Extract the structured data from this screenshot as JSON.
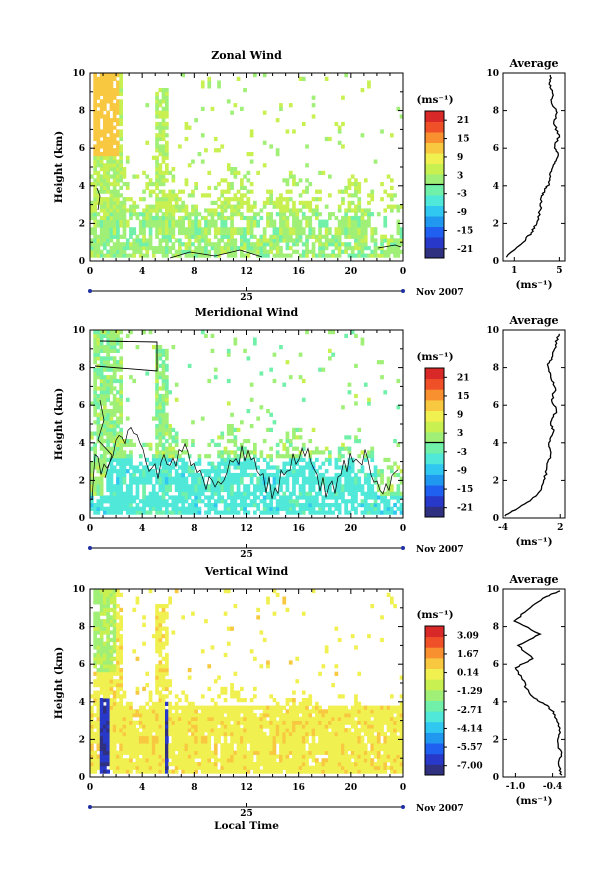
{
  "x_label": "Local Time",
  "date_label": "Nov 2007",
  "day_label": "25",
  "colorbar_unit": "(ms⁻¹)",
  "colormap": [
    "#303080",
    "#2838c8",
    "#2060f0",
    "#2098f0",
    "#30c8f0",
    "#50e8d8",
    "#70f0a8",
    "#a0f078",
    "#c8f050",
    "#f0f050",
    "#f8c840",
    "#f89030",
    "#f05028",
    "#d82828"
  ],
  "chart_data": [
    {
      "type": "heatmap",
      "title": "Zonal Wind",
      "xlabel": "",
      "ylabel": "Height (km)",
      "xlim": [
        0,
        24
      ],
      "ylim": [
        0,
        10
      ],
      "x_ticks": [
        "0",
        "4",
        "8",
        "12",
        "16",
        "20",
        "0"
      ],
      "y_ticks": [
        "0",
        "2",
        "4",
        "6",
        "8",
        "10"
      ],
      "colorbar": {
        "min": -24,
        "max": 24,
        "ticks": [
          "21",
          "15",
          "9",
          "3",
          "-3",
          "-9",
          "-15",
          "-21"
        ],
        "zero_line": 0
      },
      "profile": {
        "title": "Average",
        "xlabel": "(ms⁻¹)",
        "xlim": [
          0,
          5.5
        ],
        "x_ticks": [
          "1",
          "5"
        ],
        "x_tick_values": [
          1,
          5
        ],
        "points": [
          [
            0.3,
            0.2
          ],
          [
            1.8,
            1.0
          ],
          [
            2.5,
            1.5
          ],
          [
            3.0,
            2.0
          ],
          [
            3.3,
            2.7
          ],
          [
            3.4,
            3.4
          ],
          [
            3.7,
            3.8
          ],
          [
            4.1,
            4.1
          ],
          [
            4.2,
            4.7
          ],
          [
            4.6,
            5.2
          ],
          [
            4.9,
            5.6
          ],
          [
            4.6,
            6.1
          ],
          [
            5.0,
            6.7
          ],
          [
            4.5,
            7.3
          ],
          [
            4.8,
            7.9
          ],
          [
            4.3,
            8.4
          ],
          [
            4.4,
            8.9
          ],
          [
            4.1,
            9.4
          ],
          [
            4.2,
            9.9
          ]
        ]
      }
    },
    {
      "type": "heatmap",
      "title": "Meridional Wind",
      "xlabel": "",
      "ylabel": "Height (km)",
      "xlim": [
        0,
        24
      ],
      "ylim": [
        0,
        10
      ],
      "x_ticks": [
        "0",
        "4",
        "8",
        "12",
        "16",
        "20",
        "0"
      ],
      "y_ticks": [
        "0",
        "2",
        "4",
        "6",
        "8",
        "10"
      ],
      "colorbar": {
        "min": -24,
        "max": 24,
        "ticks": [
          "21",
          "15",
          "9",
          "3",
          "-3",
          "-9",
          "-15",
          "-21"
        ],
        "zero_line": 0
      },
      "profile": {
        "title": "Average",
        "xlabel": "(ms⁻¹)",
        "xlim": [
          -4,
          2.5
        ],
        "x_ticks": [
          "-4",
          "2"
        ],
        "x_tick_values": [
          -4,
          2
        ],
        "points": [
          [
            -3.8,
            0.1
          ],
          [
            -2.5,
            0.5
          ],
          [
            -1.0,
            1.0
          ],
          [
            0.0,
            1.5
          ],
          [
            0.4,
            2.1
          ],
          [
            0.6,
            2.8
          ],
          [
            1.0,
            3.4
          ],
          [
            0.8,
            4.0
          ],
          [
            1.3,
            4.6
          ],
          [
            1.0,
            5.1
          ],
          [
            1.6,
            5.7
          ],
          [
            1.1,
            6.3
          ],
          [
            1.5,
            6.9
          ],
          [
            1.0,
            7.5
          ],
          [
            0.7,
            8.1
          ],
          [
            1.2,
            8.6
          ],
          [
            1.5,
            9.2
          ],
          [
            1.9,
            9.8
          ]
        ]
      }
    },
    {
      "type": "heatmap",
      "title": "Vertical Wind",
      "xlabel": "Local Time",
      "ylabel": "Height (km)",
      "xlim": [
        0,
        24
      ],
      "ylim": [
        0,
        10
      ],
      "x_ticks": [
        "0",
        "4",
        "8",
        "12",
        "16",
        "20",
        "0"
      ],
      "y_ticks": [
        "0",
        "2",
        "4",
        "6",
        "8",
        "10"
      ],
      "colorbar": {
        "min": -8,
        "max": 4.5,
        "ticks": [
          "3.09",
          "1.67",
          "0.14",
          "-1.29",
          "-2.71",
          "-4.14",
          "-5.57",
          "-7.00"
        ],
        "zero_line": null
      },
      "profile": {
        "title": "Average",
        "xlabel": "(ms⁻¹)",
        "xlim": [
          -1.2,
          -0.2
        ],
        "x_ticks": [
          "-1.0",
          "-0.4"
        ],
        "x_tick_values": [
          -1.0,
          -0.4
        ],
        "points": [
          [
            -0.25,
            0.1
          ],
          [
            -0.3,
            0.6
          ],
          [
            -0.26,
            1.2
          ],
          [
            -0.32,
            1.9
          ],
          [
            -0.28,
            2.6
          ],
          [
            -0.36,
            3.3
          ],
          [
            -0.48,
            3.8
          ],
          [
            -0.7,
            4.2
          ],
          [
            -0.82,
            4.7
          ],
          [
            -0.9,
            5.3
          ],
          [
            -1.0,
            5.8
          ],
          [
            -0.72,
            6.3
          ],
          [
            -0.96,
            7.0
          ],
          [
            -0.6,
            7.6
          ],
          [
            -1.02,
            8.3
          ],
          [
            -0.76,
            9.0
          ],
          [
            -0.5,
            9.6
          ],
          [
            -0.28,
            9.9
          ]
        ]
      }
    }
  ]
}
